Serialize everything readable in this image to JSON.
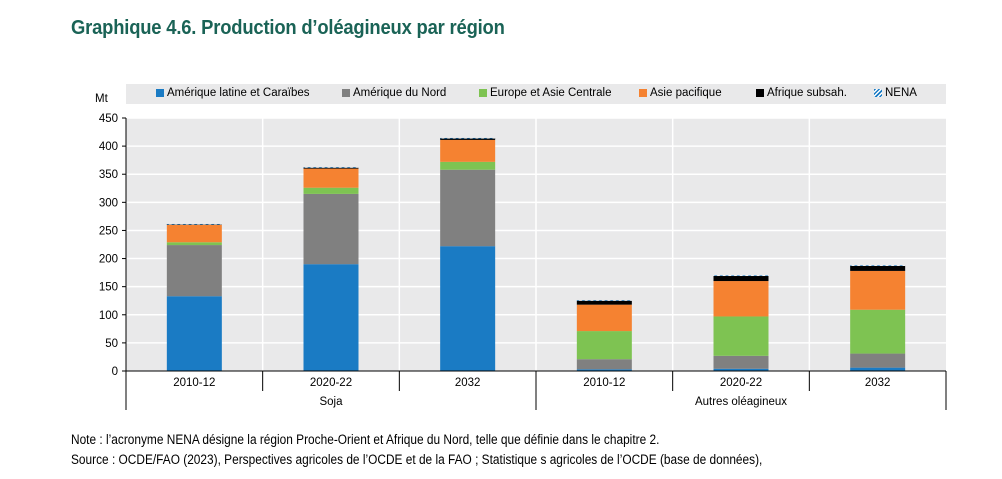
{
  "title": "Graphique 4.6. Production d’oléagineux par région",
  "unit": "Mt",
  "note": "Note : l’acronyme NENA désigne la région Proche-Orient et Afrique du Nord, telle que définie dans le chapitre 2.",
  "source": "Source : OCDE/FAO (2023), Perspectives agricoles de l’OCDE et de la FAO ; Statistique s agricoles de l’OCDE (base de données),",
  "colors": {
    "plot_bg": "#e9e9ea",
    "grid": "#ffffff",
    "title": "#1a6356"
  },
  "chart_data": {
    "type": "bar",
    "stacked": true,
    "title": "Graphique 4.6. Production d’oléagineux par région",
    "ylabel": "Mt",
    "xlabel": "",
    "ylim": [
      0,
      450
    ],
    "yticks": [
      0,
      50,
      100,
      150,
      200,
      250,
      300,
      350,
      400,
      450
    ],
    "grid": true,
    "legend_position": "top",
    "groups": [
      {
        "label": "Soja",
        "categories": [
          "2010-12",
          "2020-22",
          "2032"
        ]
      },
      {
        "label": "Autres oléagineux",
        "categories": [
          "2010-12",
          "2020-22",
          "2032"
        ]
      }
    ],
    "categories": [
      "2010-12",
      "2020-22",
      "2032",
      "2010-12",
      "2020-22",
      "2032"
    ],
    "series": [
      {
        "name": "Amérique latine et Caraïbes",
        "color": "#1a7bc4",
        "pattern": "solid",
        "values": [
          133,
          190,
          222,
          3,
          4,
          6
        ]
      },
      {
        "name": "Amérique du Nord",
        "color": "#808080",
        "pattern": "solid",
        "values": [
          91,
          125,
          136,
          18,
          23,
          25
        ]
      },
      {
        "name": "Europe et Asie Centrale",
        "color": "#7ec352",
        "pattern": "solid",
        "values": [
          5,
          11,
          14,
          50,
          70,
          78
        ]
      },
      {
        "name": "Asie pacifique",
        "color": "#f58231",
        "pattern": "solid",
        "values": [
          31,
          34,
          39,
          47,
          63,
          69
        ]
      },
      {
        "name": "Afrique subsah.",
        "color": "#000000",
        "pattern": "solid",
        "values": [
          1,
          2,
          3,
          7,
          9,
          9
        ]
      },
      {
        "name": "NENA",
        "color": "#1a7bc4",
        "pattern": "hatch",
        "values": [
          0.5,
          0.5,
          0.5,
          1,
          1,
          1
        ]
      }
    ]
  }
}
